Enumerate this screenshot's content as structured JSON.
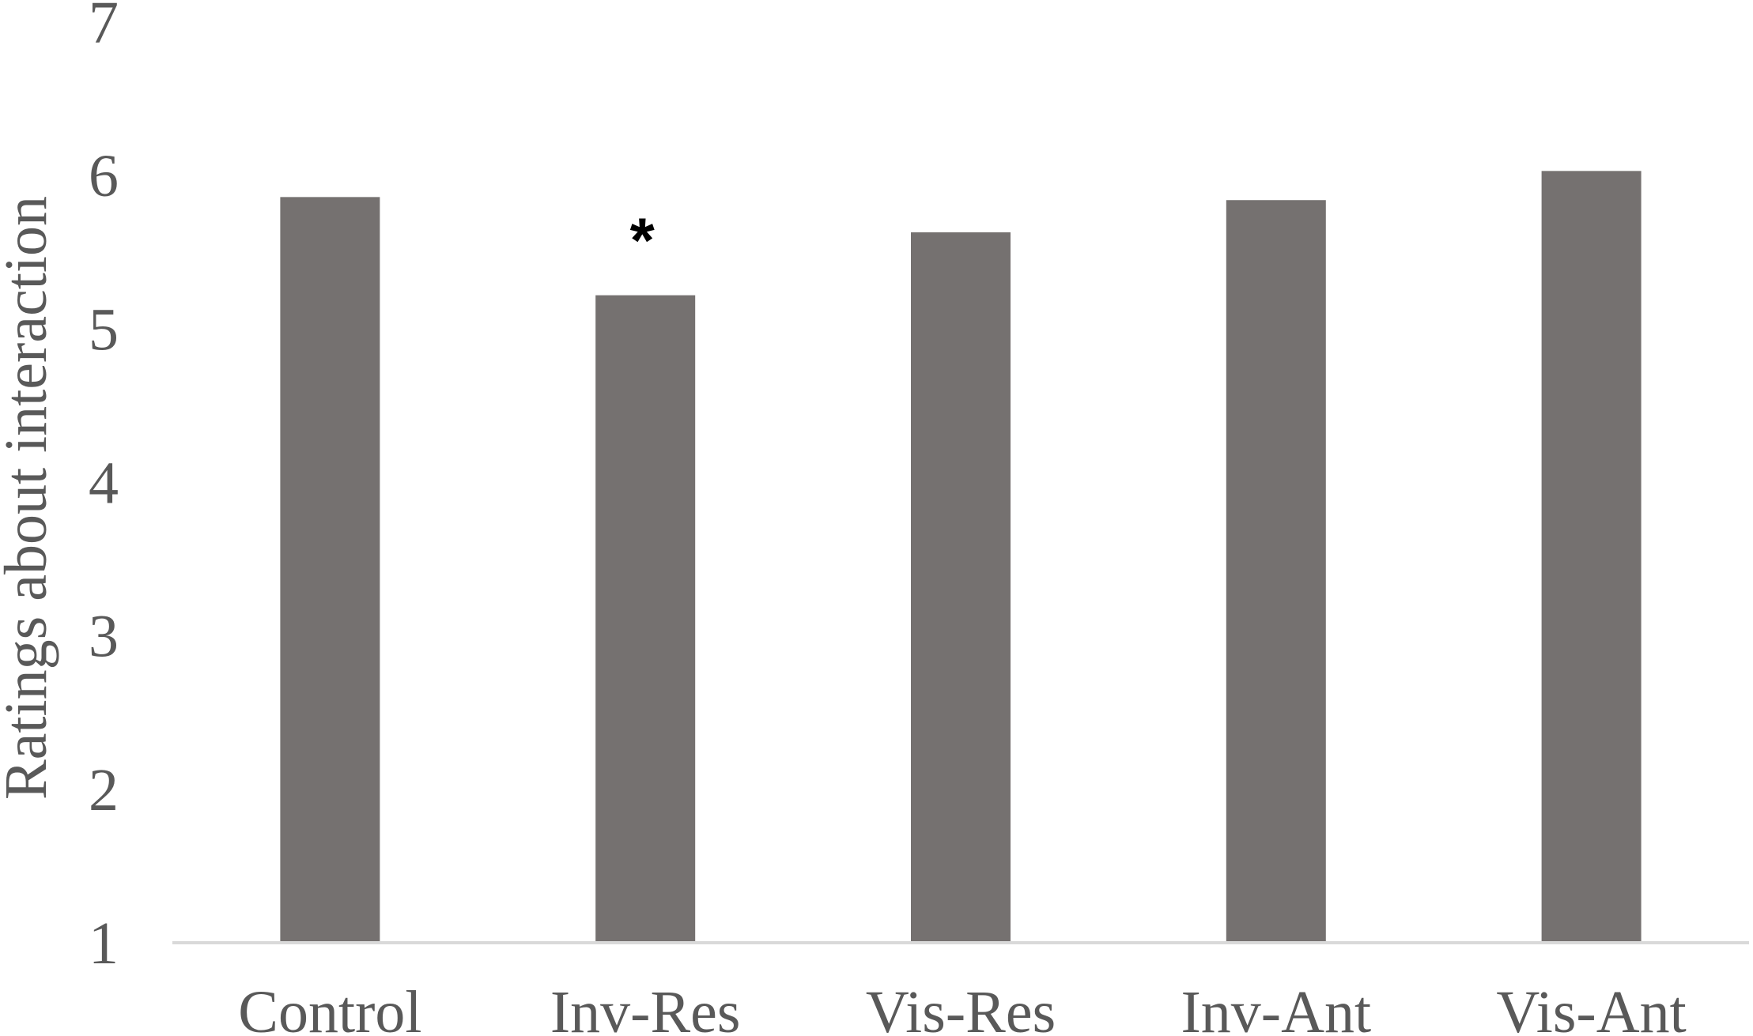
{
  "chart_data": {
    "type": "bar",
    "categories": [
      "Control",
      "Inv-Res",
      "Vis-Res",
      "Inv-Ant",
      "Vis-Ant"
    ],
    "values": [
      5.86,
      5.22,
      5.63,
      5.84,
      6.03
    ],
    "xlabel": "",
    "ylabel": "Ratings about interaction",
    "ylim": [
      1,
      7
    ],
    "yticks": [
      "1",
      "2",
      "3",
      "4",
      "5",
      "6",
      "7"
    ],
    "annotations": [
      {
        "category": "Inv-Res",
        "text": "*"
      }
    ],
    "grid": false,
    "legend": "none",
    "colors": {
      "bar": "#757170",
      "axis_line": "#d9d9d9",
      "text": "#595959"
    }
  }
}
